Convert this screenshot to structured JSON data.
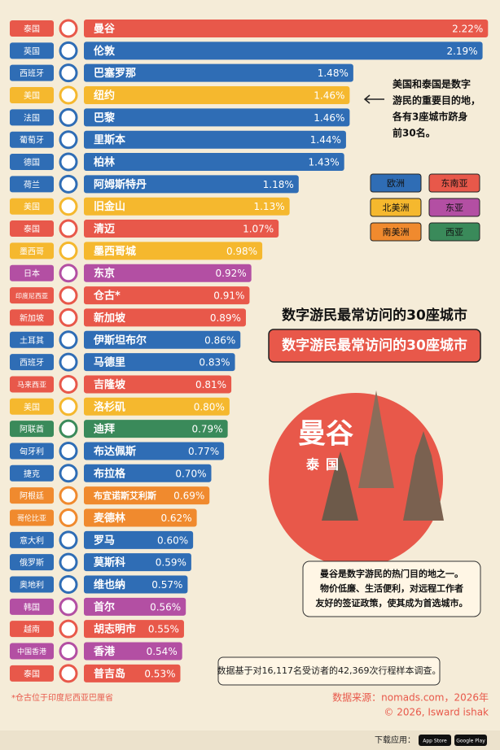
{
  "chart_data": {
    "type": "bar",
    "orientation": "horizontal",
    "title": "数字游民最常访问的30座城市",
    "categories": [
      "曼谷",
      "伦敦",
      "巴塞罗那",
      "纽约",
      "巴黎",
      "里斯本",
      "柏林",
      "阿姆斯特丹",
      "旧金山",
      "清迈",
      "墨西哥城",
      "东京",
      "仓古*",
      "新加坡",
      "伊斯坦布尔",
      "马德里",
      "吉隆坡",
      "洛杉矶",
      "迪拜",
      "布达佩斯",
      "布拉格",
      "布宜诺斯艾利斯",
      "麦德林",
      "罗马",
      "莫斯科",
      "维也纳",
      "首尔",
      "胡志明市",
      "香港",
      "普吉岛"
    ],
    "countries": [
      "泰国",
      "英国",
      "西班牙",
      "美国",
      "法国",
      "葡萄牙",
      "德国",
      "荷兰",
      "美国",
      "泰国",
      "墨西哥",
      "日本",
      "印度尼西亚",
      "新加坡",
      "土耳其",
      "西班牙",
      "马来西亚",
      "美国",
      "阿联酋",
      "匈牙利",
      "捷克",
      "阿根廷",
      "哥伦比亚",
      "意大利",
      "俄罗斯",
      "奥地利",
      "韩国",
      "越南",
      "中国香港",
      "泰国"
    ],
    "values": [
      2.22,
      2.19,
      1.48,
      1.46,
      1.46,
      1.44,
      1.43,
      1.18,
      1.13,
      1.07,
      0.98,
      0.92,
      0.91,
      0.89,
      0.86,
      0.83,
      0.81,
      0.8,
      0.79,
      0.77,
      0.7,
      0.69,
      0.62,
      0.6,
      0.59,
      0.57,
      0.56,
      0.55,
      0.54,
      0.53
    ],
    "value_labels": [
      "2.22%",
      "2.19%",
      "1.48%",
      "1.46%",
      "1.46%",
      "1.44%",
      "1.43%",
      "1.18%",
      "1.13%",
      "1.07%",
      "0.98%",
      "0.92%",
      "0.91%",
      "0.89%",
      "0.86%",
      "0.83%",
      "0.81%",
      "0.80%",
      "0.79%",
      "0.77%",
      "0.70%",
      "0.69%",
      "0.62%",
      "0.60%",
      "0.59%",
      "0.57%",
      "0.56%",
      "0.55%",
      "0.54%",
      "0.53%"
    ],
    "colors": [
      "#e8584a",
      "#2f6db5",
      "#2f6db5",
      "#f5b82e",
      "#2f6db5",
      "#2f6db5",
      "#2f6db5",
      "#2f6db5",
      "#f5b82e",
      "#e8584a",
      "#f5b82e",
      "#b34fa3",
      "#e8584a",
      "#e8584a",
      "#2f6db5",
      "#2f6db5",
      "#e8584a",
      "#f5b82e",
      "#3a8a5a",
      "#2f6db5",
      "#2f6db5",
      "#f08a2e",
      "#f08a2e",
      "#2f6db5",
      "#2f6db5",
      "#2f6db5",
      "#b34fa3",
      "#e8584a",
      "#b34fa3",
      "#e8584a"
    ],
    "xlim": [
      0,
      2.25
    ],
    "legend": [
      {
        "name": "欧洲",
        "color": "#2f6db5"
      },
      {
        "name": "东南亚",
        "color": "#e8584a"
      },
      {
        "name": "北美洲",
        "color": "#f5b82e"
      },
      {
        "name": "东亚",
        "color": "#b34fa3"
      },
      {
        "name": "南美洲",
        "color": "#f08a2e"
      },
      {
        "name": "西亚",
        "color": "#3a8a5a"
      }
    ],
    "annotation_lines": [
      "美国和泰国是数字",
      "游民的重要目的地，",
      "各有3座城市跻身",
      "前30名。"
    ],
    "feature_city": "曼谷",
    "feature_country": "泰国",
    "feature_lines": [
      "曼谷是数字游民的热门目的地之一。",
      "物价低廉、生活便利，对远程工作者",
      "友好的签证政策，使其成为首选城市。"
    ],
    "survey_note": "数据基于对16,117名受访者的42,369次行程样本调查。",
    "footnote": "*仓古位于印度尼西亚巴厘省",
    "source": "数据来源：nomads.com，2026年",
    "credit": "© 2026, Isward ishak",
    "download_label": "下载应用：",
    "badges": [
      "App Store",
      "Google Play"
    ]
  }
}
